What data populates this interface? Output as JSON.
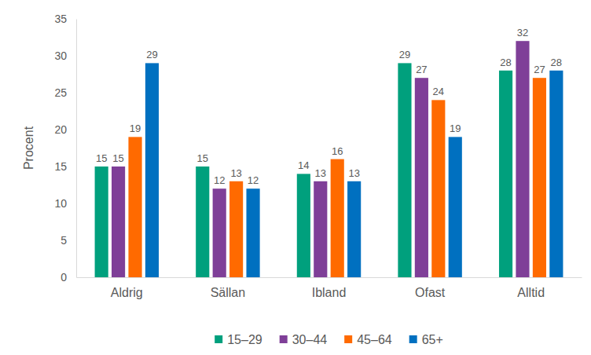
{
  "chart_data": {
    "type": "bar",
    "y_label": "Procent",
    "categories": [
      "Aldrig",
      "Sällan",
      "Ibland",
      "Ofast",
      "Alltid"
    ],
    "series": [
      {
        "name": "15–29",
        "color": "#00a07d",
        "values": [
          15,
          15,
          14,
          29,
          28
        ]
      },
      {
        "name": "30–44",
        "color": "#7f3f98",
        "values": [
          15,
          12,
          13,
          27,
          32
        ]
      },
      {
        "name": "45–64",
        "color": "#ff6a00",
        "values": [
          19,
          13,
          16,
          24,
          27
        ]
      },
      {
        "name": "65+",
        "color": "#0070c0",
        "values": [
          29,
          12,
          13,
          19,
          28
        ]
      }
    ],
    "ylim": [
      0,
      35
    ],
    "yticks": [
      0,
      5,
      10,
      15,
      20,
      25,
      30,
      35
    ],
    "grid": false,
    "legend": "bottom",
    "data_labels": true
  }
}
